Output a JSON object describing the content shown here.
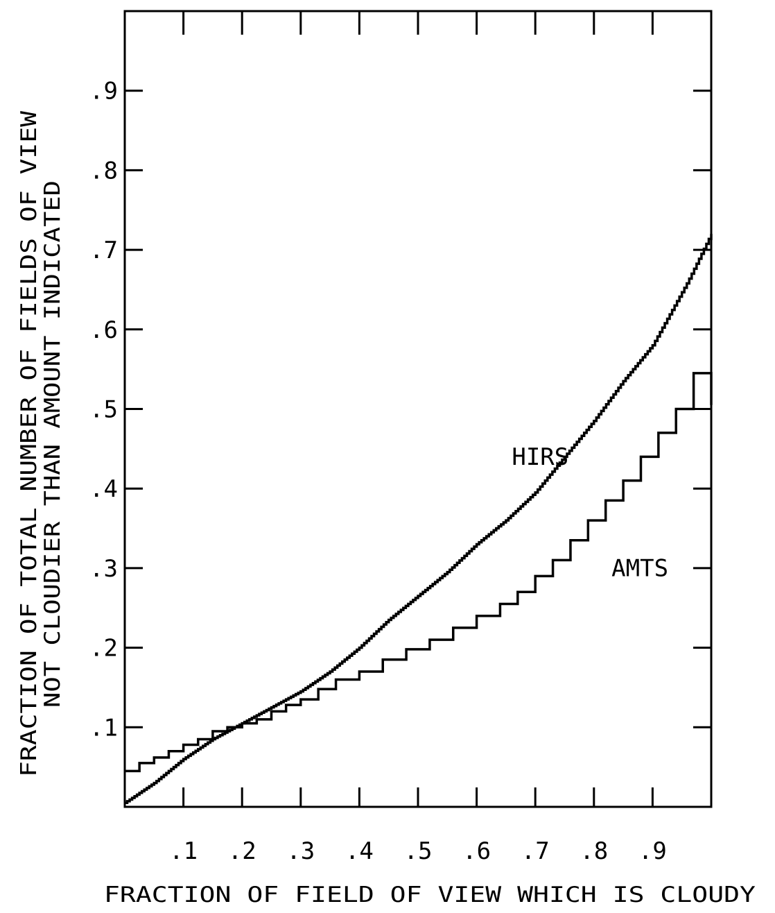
{
  "chart_data": {
    "type": "line",
    "title": "",
    "xlabel": "FRACTION OF FIELD OF VIEW WHICH IS CLOUDY",
    "ylabel": [
      "FRACTION OF TOTAL NUMBER OF FIELDS OF VIEW",
      "NOT CLOUDIER THAN AMOUNT INDICATED"
    ],
    "xlim": [
      0,
      1
    ],
    "ylim": [
      0,
      1
    ],
    "x_ticks": [
      0.1,
      0.2,
      0.3,
      0.4,
      0.5,
      0.6,
      0.7,
      0.8,
      0.9
    ],
    "x_tick_labels": [
      ".1",
      ".2",
      ".3",
      ".4",
      ".5",
      ".6",
      ".7",
      ".8",
      ".9"
    ],
    "y_ticks": [
      0.1,
      0.2,
      0.3,
      0.4,
      0.5,
      0.6,
      0.7,
      0.8,
      0.9
    ],
    "y_tick_labels": [
      ".1",
      ".2",
      ".3",
      ".4",
      ".5",
      ".6",
      ".7",
      ".8",
      ".9"
    ],
    "top_ticks": [
      0.1,
      0.2,
      0.3,
      0.4,
      0.5,
      0.6,
      0.7,
      0.8,
      0.9
    ],
    "grid": false,
    "series": [
      {
        "name": "HIRS",
        "style": "fine-step",
        "x": [
          0,
          0.05,
          0.1,
          0.15,
          0.2,
          0.25,
          0.3,
          0.35,
          0.4,
          0.45,
          0.5,
          0.55,
          0.6,
          0.65,
          0.7,
          0.75,
          0.8,
          0.85,
          0.9,
          0.93,
          0.96,
          0.98,
          1.0
        ],
        "y": [
          0.005,
          0.03,
          0.06,
          0.085,
          0.105,
          0.125,
          0.145,
          0.17,
          0.2,
          0.235,
          0.265,
          0.295,
          0.33,
          0.36,
          0.395,
          0.44,
          0.485,
          0.535,
          0.58,
          0.62,
          0.66,
          0.69,
          0.72
        ]
      },
      {
        "name": "AMTS",
        "style": "coarse-step",
        "x": [
          0,
          0.025,
          0.05,
          0.075,
          0.1,
          0.125,
          0.15,
          0.175,
          0.2,
          0.225,
          0.25,
          0.275,
          0.3,
          0.33,
          0.36,
          0.4,
          0.44,
          0.48,
          0.52,
          0.56,
          0.6,
          0.64,
          0.67,
          0.7,
          0.73,
          0.76,
          0.79,
          0.82,
          0.85,
          0.88,
          0.91,
          0.94,
          0.97,
          1.0
        ],
        "y": [
          0.045,
          0.055,
          0.062,
          0.07,
          0.078,
          0.085,
          0.095,
          0.1,
          0.105,
          0.11,
          0.12,
          0.128,
          0.135,
          0.148,
          0.16,
          0.17,
          0.185,
          0.198,
          0.21,
          0.225,
          0.24,
          0.255,
          0.27,
          0.29,
          0.31,
          0.335,
          0.36,
          0.385,
          0.41,
          0.44,
          0.47,
          0.5,
          0.545,
          0.545
        ]
      }
    ],
    "annotations": [
      {
        "text": "HIRS",
        "x": 0.66,
        "y": 0.43
      },
      {
        "text": "AMTS",
        "x": 0.83,
        "y": 0.29
      }
    ]
  }
}
